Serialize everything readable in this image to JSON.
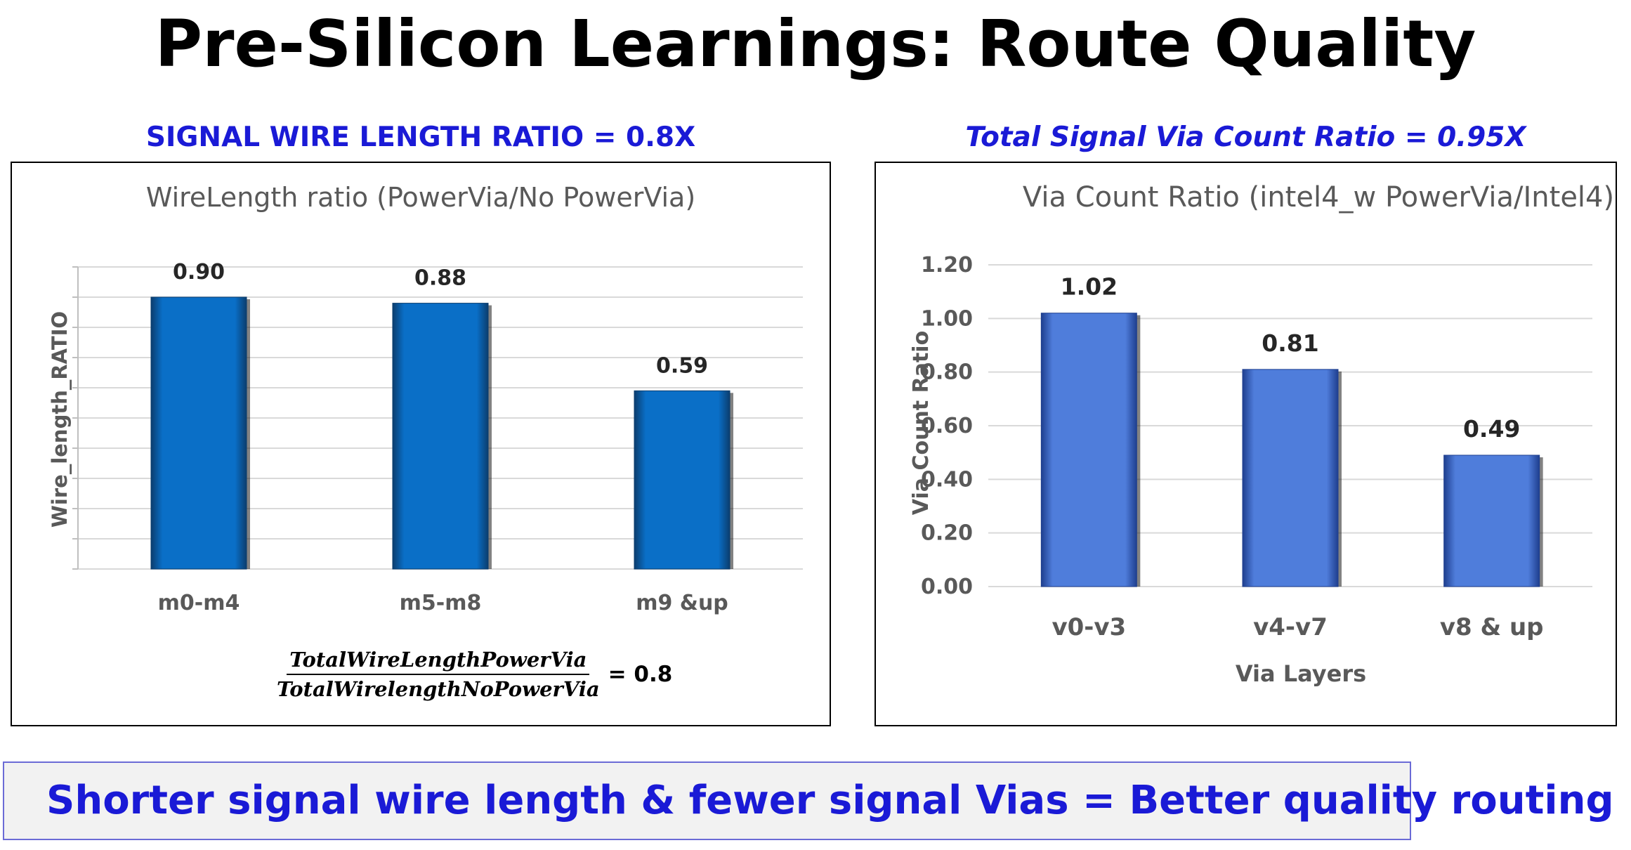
{
  "slide": {
    "title": "Pre-Silicon Learnings: Route Quality",
    "conclusion": "Shorter signal wire length & fewer signal Vias = Better quality routing"
  },
  "left_panel": {
    "heading": "SIGNAL WIRE LENGTH RATIO = 0.8X",
    "formula": {
      "numerator": "TotalWireLengthPowerVia",
      "denominator": "TotalWirelengthNoPowerVia",
      "result": "= 0.8"
    }
  },
  "right_panel": {
    "heading": "Total Signal Via Count Ratio = 0.95X"
  },
  "colors": {
    "heading_blue": "#1a1ad6",
    "left_bar": "#0a6fc7",
    "right_bar": "#4f7ddb",
    "grid": "#d9d9d9",
    "axis_text": "#595959"
  },
  "chart_data": [
    {
      "type": "bar",
      "title": "WireLength ratio (PowerVia/No PowerVia)",
      "xlabel": "",
      "ylabel": "Wire_length_RATIO",
      "categories": [
        "m0-m4",
        "m5-m8",
        "m9 &up"
      ],
      "values": [
        0.9,
        0.88,
        0.59
      ],
      "data_labels": [
        "0.90",
        "0.88",
        "0.59"
      ],
      "ylim": [
        0,
        1.0
      ],
      "yticks": [],
      "grid": true,
      "legend": "none"
    },
    {
      "type": "bar",
      "title": "Via Count Ratio (intel4_w PowerVia/Intel4)",
      "xlabel": "Via Layers",
      "ylabel": "Via Count Ratio",
      "categories": [
        "v0-v3",
        "v4-v7",
        "v8 & up"
      ],
      "values": [
        1.02,
        0.81,
        0.49
      ],
      "data_labels": [
        "1.02",
        "0.81",
        "0.49"
      ],
      "ylim": [
        0,
        1.2
      ],
      "yticks": [
        "0.00",
        "0.20",
        "0.40",
        "0.60",
        "0.80",
        "1.00",
        "1.20"
      ],
      "grid": true,
      "legend": "none"
    }
  ]
}
